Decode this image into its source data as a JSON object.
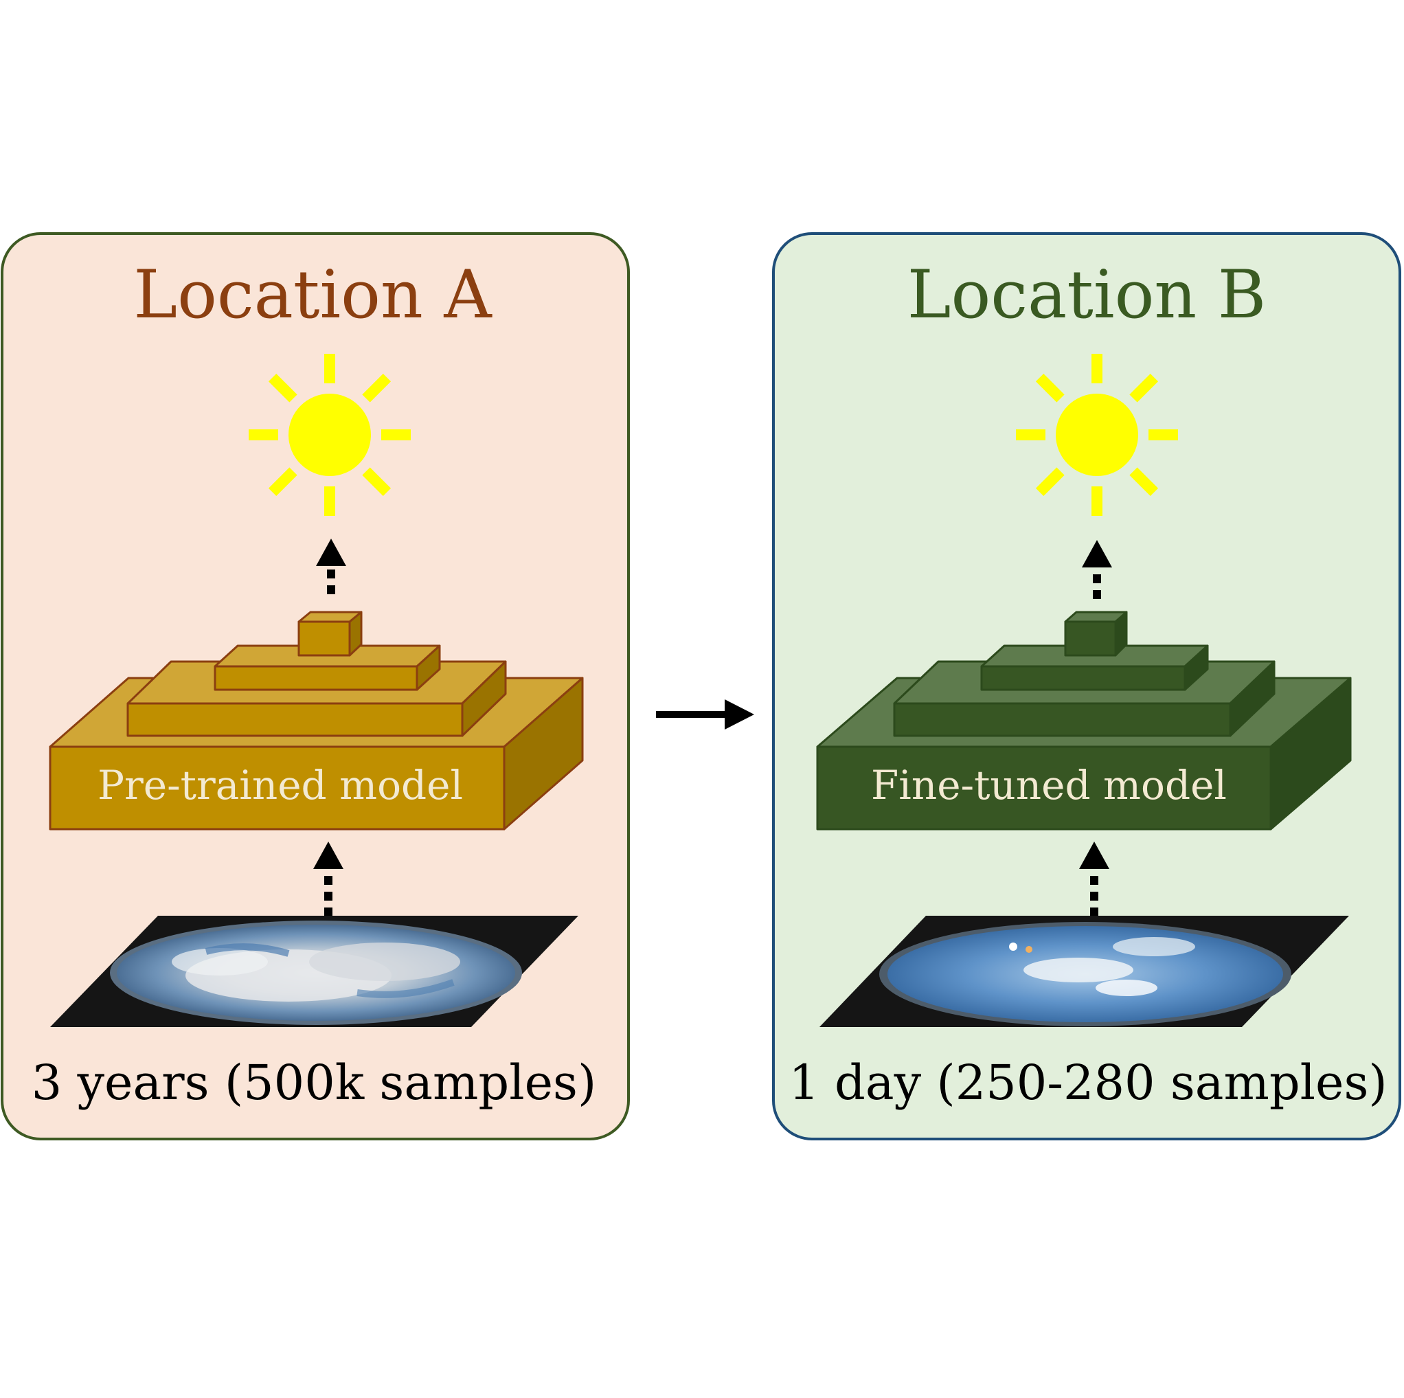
{
  "panel_a": {
    "title": "Location A",
    "model_label": "Pre-trained model",
    "caption": "3 years (500k samples)"
  },
  "panel_b": {
    "title": "Location B",
    "model_label": "Fine-tuned model",
    "caption": "1 day (250-280 samples)"
  },
  "colors": {
    "panel_a_fill": "#fae5d8",
    "panel_a_border": "#3e5a23",
    "panel_a_title": "#8b3f10",
    "panel_b_fill": "#e2efdb",
    "panel_b_border": "#1f4e79",
    "panel_b_title": "#3a5a22",
    "model_a_front": "#bf8f00",
    "model_a_top": "#d0a636",
    "model_a_side": "#9a7300",
    "model_a_edge": "#8b3f10",
    "model_b_front": "#375623",
    "model_b_top": "#5e7b4d",
    "model_b_side": "#2c4a1c",
    "model_b_edge": "#2c4a1c",
    "model_label_text": "#f3ead2",
    "sun": "#ffff00",
    "arrow": "#000000"
  },
  "icons": {
    "sun": "sun-icon",
    "sky_image": "sky-image-icon",
    "transfer_arrow": "arrow-right-icon"
  }
}
